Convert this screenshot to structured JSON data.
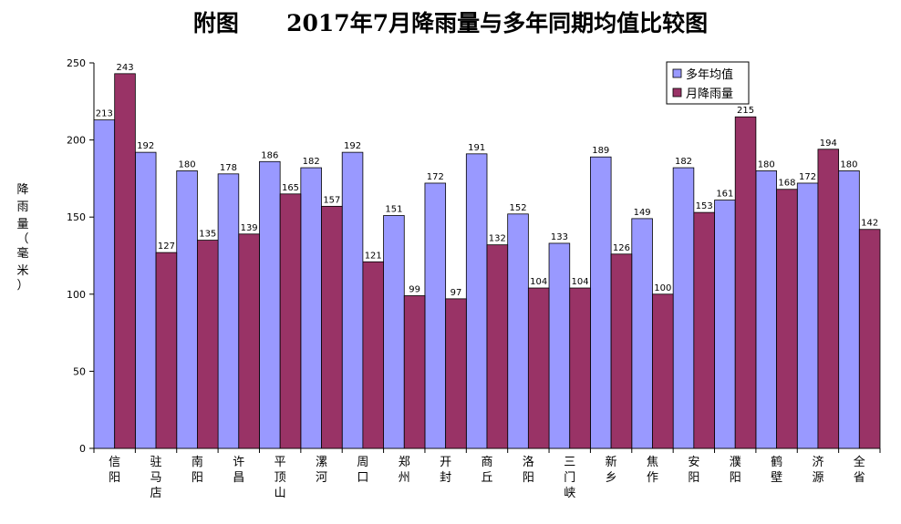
{
  "chart_data": {
    "type": "bar",
    "title": "附图      2017年7月降雨量与多年同期均值比较图",
    "ylabel": "降雨量（毫米）",
    "ylim": [
      0,
      250
    ],
    "yticks": [
      0,
      50,
      100,
      150,
      200,
      250
    ],
    "grid": false,
    "legend_position": "top-right",
    "categories": [
      "信阳",
      "驻马店",
      "南阳",
      "许昌",
      "平顶山",
      "漯河",
      "周口",
      "郑州",
      "开封",
      "商丘",
      "洛阳",
      "三门峡",
      "新乡",
      "焦作",
      "安阳",
      "濮阳",
      "鹤壁",
      "济源",
      "全省"
    ],
    "series": [
      {
        "name": "多年均值",
        "color": "#9999ff",
        "values": [
          213,
          192,
          180,
          178,
          186,
          182,
          192,
          151,
          172,
          191,
          152,
          133,
          189,
          149,
          182,
          161,
          180,
          172,
          180
        ]
      },
      {
        "name": "月降雨量",
        "color": "#993366",
        "values": [
          243,
          127,
          135,
          139,
          165,
          157,
          121,
          99,
          97,
          132,
          104,
          104,
          126,
          100,
          153,
          215,
          168,
          194,
          142
        ]
      }
    ]
  }
}
